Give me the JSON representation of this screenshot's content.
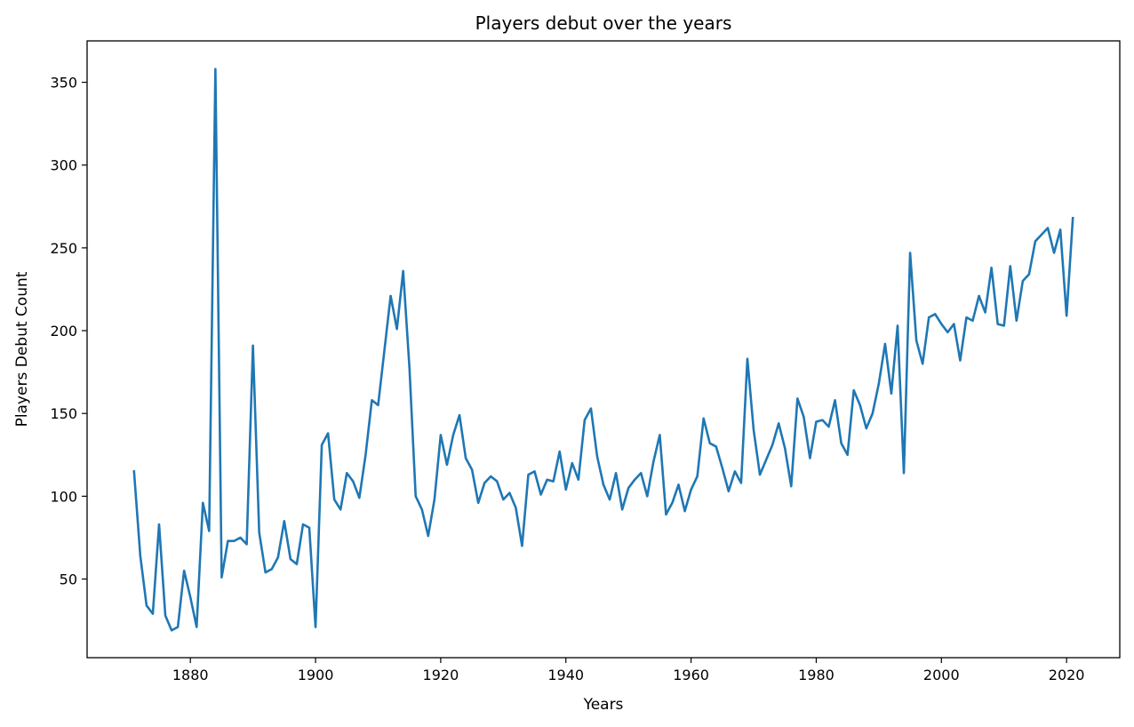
{
  "chart_data": {
    "type": "line",
    "title": "Players debut over the years",
    "xlabel": "Years",
    "ylabel": "Players Debut Count",
    "xlim": [
      1863.5,
      1028.5
    ],
    "ylim": [
      2.5,
      375
    ],
    "xticks": [
      1880,
      1900,
      1920,
      1940,
      1960,
      1980,
      2000,
      2020
    ],
    "yticks": [
      50,
      100,
      150,
      200,
      250,
      300,
      350
    ],
    "grid": false,
    "legend": "none",
    "color": "#1f77b4",
    "series": [
      {
        "x": [
          1871,
          1872,
          1873,
          1874,
          1875,
          1876,
          1877,
          1878,
          1879,
          1880,
          1881,
          1882,
          1883,
          1884,
          1885,
          1886,
          1887,
          1888,
          1889,
          1890,
          1891,
          1892,
          1893,
          1894,
          1895,
          1896,
          1897,
          1898,
          1899,
          1900,
          1901,
          1902,
          1903,
          1904,
          1905,
          1906,
          1907,
          1908,
          1909,
          1910,
          1911,
          1912,
          1913,
          1914,
          1915,
          1916,
          1917,
          1918,
          1919,
          1920,
          1921,
          1922,
          1923,
          1924,
          1925,
          1926,
          1927,
          1928,
          1929,
          1930,
          1931,
          1932,
          1933,
          1934,
          1935,
          1936,
          1937,
          1938,
          1939,
          1940,
          1941,
          1942,
          1943,
          1944,
          1945,
          1946,
          1947,
          1948,
          1949,
          1950,
          1951,
          1952,
          1953,
          1954,
          1955,
          1956,
          1957,
          1958,
          1959,
          1960,
          1961,
          1962,
          1963,
          1964,
          1965,
          1966,
          1967,
          1968,
          1969,
          1970,
          1971,
          1972,
          1973,
          1974,
          1975,
          1976,
          1977,
          1978,
          1979,
          1980,
          1981,
          1982,
          1983,
          1984,
          1985,
          1986,
          1987,
          1988,
          1989,
          1990,
          1991,
          1992,
          1993,
          1994,
          1995,
          1996,
          1997,
          1998,
          1999,
          2000,
          2001,
          2002,
          2003,
          2004,
          2005,
          2006,
          2007,
          2008,
          2009,
          2010,
          2011,
          2012,
          2013,
          2014,
          2015,
          2016,
          2017,
          2018,
          2019,
          2020,
          2021
        ],
        "values": [
          115,
          64,
          34,
          29,
          83,
          28,
          19,
          21,
          55,
          39,
          21,
          96,
          79,
          358,
          51,
          73,
          73,
          75,
          71,
          191,
          78,
          54,
          56,
          63,
          85,
          62,
          59,
          83,
          81,
          21,
          131,
          138,
          98,
          92,
          114,
          109,
          99,
          125,
          158,
          155,
          188,
          221,
          201,
          236,
          178,
          100,
          92,
          76,
          98,
          137,
          119,
          137,
          149,
          123,
          116,
          96,
          108,
          112,
          109,
          98,
          102,
          93,
          70,
          113,
          115,
          101,
          110,
          109,
          127,
          104,
          120,
          110,
          146,
          153,
          124,
          107,
          98,
          114,
          92,
          105,
          110,
          114,
          100,
          121,
          137,
          89,
          96,
          107,
          91,
          104,
          112,
          147,
          132,
          130,
          117,
          103,
          115,
          108,
          183,
          140,
          113,
          122,
          131,
          144,
          129,
          106,
          159,
          148,
          123,
          145,
          146,
          142,
          158,
          132,
          125,
          164,
          155,
          141,
          150,
          168,
          192,
          162,
          203,
          114,
          247,
          194,
          180,
          208,
          210,
          204,
          199,
          204,
          182,
          208,
          206,
          221,
          211,
          238,
          204,
          203,
          239,
          206,
          230,
          234,
          254,
          258,
          262,
          247,
          261,
          209,
          268
        ]
      }
    ]
  }
}
